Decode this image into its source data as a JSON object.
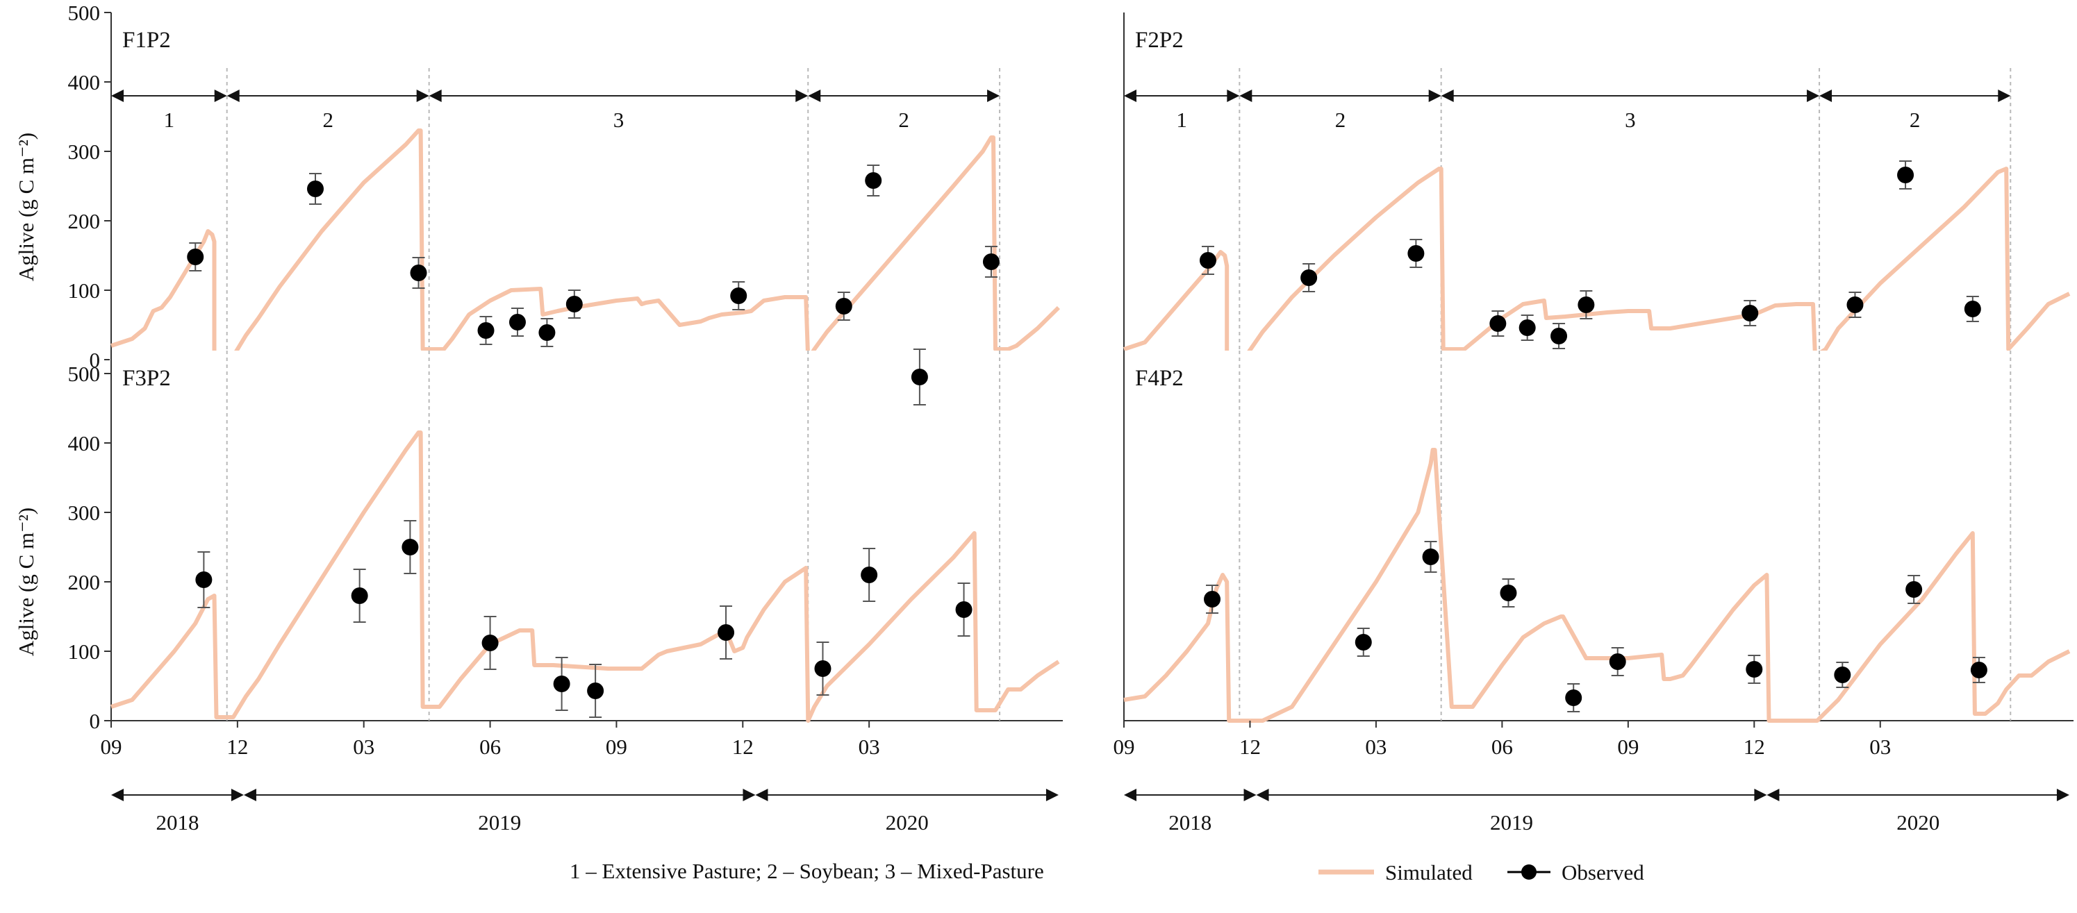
{
  "figure": {
    "legend": {
      "simulated_label": "Simulated",
      "observed_label": "Observed"
    },
    "phase_caption": "1 – Extensive Pasture; 2 – Soybean; 3 – Mixed-Pasture",
    "x_tick_labels": [
      "09",
      "12",
      "03",
      "06",
      "09",
      "12",
      "03"
    ],
    "x_tick_months": [
      0,
      3,
      6,
      9,
      12,
      15,
      18
    ],
    "year_labels": [
      {
        "label": "2018",
        "start": 0,
        "end": 3.15
      },
      {
        "label": "2019",
        "start": 3.15,
        "end": 15.3
      },
      {
        "label": "2020",
        "start": 15.3,
        "end": 22.5
      }
    ],
    "x_range_months": [
      0,
      22.6
    ],
    "month_axis_note": "x values are months since Sep 1 2018",
    "simulated_color": "#f6c3a8",
    "observed_color": "#000000"
  },
  "chart_data": [
    {
      "id": "F1P2",
      "title": "F1P2",
      "type": "line",
      "ylabel": "Aglive (g C m⁻²)",
      "ylim": [
        0,
        500
      ],
      "yticks": [
        0,
        100,
        200,
        300,
        400,
        500
      ],
      "ytick_labels": [
        "0",
        "100",
        "200",
        "300",
        "400",
        "500"
      ],
      "show_x_axis_labels": false,
      "phases": [
        {
          "label": "1",
          "start": 0,
          "end": 2.75
        },
        {
          "label": "2",
          "start": 2.75,
          "end": 7.55
        },
        {
          "label": "3",
          "start": 7.55,
          "end": 16.55
        },
        {
          "label": "2",
          "start": 16.55,
          "end": 21.1
        }
      ],
      "simulated": {
        "name": "Simulated",
        "x": [
          0,
          0.5,
          0.8,
          1.0,
          1.2,
          1.4,
          1.6,
          1.8,
          2.0,
          2.2,
          2.3,
          2.4,
          2.45,
          2.45,
          2.8,
          2.9,
          3.2,
          3.5,
          4.0,
          5.0,
          6.0,
          7.0,
          7.3,
          7.35,
          7.4,
          7.9,
          8.1,
          8.5,
          9.0,
          9.5,
          10.2,
          10.25,
          10.6,
          11.0,
          11.5,
          12.0,
          12.5,
          12.6,
          12.7,
          13.0,
          13.5,
          14.0,
          14.2,
          14.5,
          15.0,
          15.2,
          15.5,
          16.0,
          16.5,
          16.55,
          16.7,
          17.0,
          18.0,
          19.0,
          20.0,
          20.7,
          20.9,
          20.95,
          21.0,
          21.3,
          21.5,
          22.0,
          22.5
        ],
        "y": [
          20,
          30,
          45,
          70,
          75,
          90,
          110,
          130,
          150,
          170,
          185,
          180,
          170,
          5,
          5,
          5,
          35,
          60,
          105,
          185,
          255,
          310,
          330,
          330,
          15,
          15,
          30,
          65,
          85,
          100,
          102,
          65,
          70,
          75,
          80,
          85,
          88,
          80,
          82,
          85,
          50,
          55,
          60,
          65,
          68,
          70,
          85,
          90,
          90,
          0,
          15,
          40,
          110,
          180,
          250,
          300,
          320,
          320,
          15,
          15,
          20,
          45,
          75
        ]
      },
      "observed": {
        "name": "Observed",
        "x": [
          2.0,
          4.85,
          7.3,
          8.9,
          9.65,
          10.35,
          11.0,
          14.9,
          17.4,
          18.1,
          20.9
        ],
        "y": [
          148,
          246,
          125,
          42,
          54,
          39,
          80,
          92,
          77,
          258,
          141
        ],
        "err": [
          20,
          22,
          22,
          20,
          20,
          20,
          20,
          20,
          20,
          22,
          22
        ]
      }
    },
    {
      "id": "F2P2",
      "title": "F2P2",
      "type": "line",
      "ylabel": "",
      "ylim": [
        0,
        500
      ],
      "yticks": [],
      "ytick_labels": [],
      "show_x_axis_labels": false,
      "phases": [
        {
          "label": "1",
          "start": 0,
          "end": 2.75
        },
        {
          "label": "2",
          "start": 2.75,
          "end": 7.55
        },
        {
          "label": "3",
          "start": 7.55,
          "end": 16.55
        },
        {
          "label": "2",
          "start": 16.55,
          "end": 21.1
        }
      ],
      "simulated": {
        "name": "Simulated",
        "x": [
          0,
          0.5,
          1.0,
          1.5,
          2.0,
          2.3,
          2.4,
          2.45,
          2.45,
          2.8,
          2.9,
          3.3,
          4.0,
          5.0,
          6.0,
          7.0,
          7.5,
          7.55,
          7.6,
          8.1,
          8.5,
          9.0,
          9.5,
          10.0,
          10.05,
          10.5,
          11.0,
          11.5,
          12.0,
          12.5,
          12.55,
          13.0,
          13.5,
          14.0,
          14.5,
          15.0,
          15.5,
          16.0,
          16.4,
          16.45,
          16.7,
          17.0,
          18.0,
          19.0,
          20.0,
          20.8,
          21.0,
          21.05,
          21.5,
          22.0,
          22.5
        ],
        "y": [
          15,
          25,
          60,
          95,
          130,
          155,
          150,
          135,
          5,
          5,
          5,
          40,
          90,
          150,
          205,
          255,
          275,
          275,
          15,
          15,
          35,
          60,
          80,
          85,
          60,
          62,
          65,
          68,
          70,
          70,
          45,
          45,
          50,
          55,
          60,
          65,
          78,
          80,
          80,
          5,
          15,
          45,
          110,
          165,
          220,
          270,
          275,
          15,
          45,
          80,
          95
        ]
      },
      "observed": {
        "name": "Observed",
        "x": [
          2.0,
          4.4,
          6.95,
          8.9,
          9.6,
          10.35,
          11.0,
          14.9,
          17.4,
          18.6,
          20.2
        ],
        "y": [
          143,
          118,
          153,
          52,
          46,
          34,
          79,
          67,
          79,
          266,
          73
        ],
        "err": [
          20,
          20,
          20,
          18,
          18,
          18,
          20,
          18,
          18,
          20,
          18
        ]
      }
    },
    {
      "id": "F3P2",
      "title": "F3P2",
      "type": "line",
      "ylabel": "Aglive (g C m⁻²)",
      "ylim": [
        0,
        550
      ],
      "yticks": [
        0,
        100,
        200,
        300,
        400,
        500
      ],
      "ytick_labels": [
        "0",
        "100",
        "200",
        "300",
        "400",
        "500"
      ],
      "show_x_axis_labels": true,
      "phases": [
        {
          "label": "",
          "start": 0,
          "end": 2.75
        },
        {
          "label": "",
          "start": 2.75,
          "end": 7.55
        },
        {
          "label": "",
          "start": 7.55,
          "end": 16.55
        },
        {
          "label": "",
          "start": 16.55,
          "end": 21.1
        }
      ],
      "simulated": {
        "name": "Simulated",
        "x": [
          0,
          0.5,
          1.0,
          1.5,
          2.0,
          2.3,
          2.45,
          2.5,
          2.55,
          2.9,
          3.2,
          3.5,
          4.0,
          5.0,
          6.0,
          7.0,
          7.3,
          7.35,
          7.4,
          7.8,
          8.3,
          9.0,
          9.7,
          10.0,
          10.05,
          10.5,
          11.0,
          11.8,
          12.0,
          12.6,
          12.8,
          13.0,
          13.2,
          14.0,
          14.6,
          14.8,
          15.0,
          15.1,
          15.5,
          16.0,
          16.5,
          16.55,
          16.7,
          17.0,
          18.0,
          19.0,
          20.0,
          20.5,
          20.55,
          21.0,
          21.3,
          21.6,
          22.0,
          22.5
        ],
        "y": [
          20,
          30,
          65,
          100,
          140,
          175,
          180,
          5,
          5,
          5,
          35,
          60,
          110,
          205,
          300,
          390,
          415,
          415,
          20,
          20,
          60,
          110,
          130,
          130,
          80,
          80,
          78,
          75,
          75,
          75,
          85,
          95,
          100,
          110,
          130,
          100,
          105,
          120,
          160,
          200,
          220,
          0,
          20,
          50,
          110,
          175,
          235,
          270,
          15,
          15,
          45,
          45,
          65,
          85
        ]
      },
      "observed": {
        "name": "Observed",
        "x": [
          2.2,
          5.9,
          7.1,
          9.0,
          10.7,
          11.5,
          14.6,
          16.9,
          18.0,
          19.2,
          20.25
        ],
        "y": [
          203,
          180,
          250,
          112,
          53,
          43,
          127,
          75,
          210,
          495,
          160
        ],
        "err": [
          40,
          38,
          38,
          38,
          38,
          38,
          38,
          38,
          38,
          40,
          38
        ]
      }
    },
    {
      "id": "F4P2",
      "title": "F4P2",
      "type": "line",
      "ylabel": "",
      "ylim": [
        0,
        550
      ],
      "yticks": [],
      "ytick_labels": [],
      "show_x_axis_labels": true,
      "phases": [
        {
          "label": "",
          "start": 0,
          "end": 2.75
        },
        {
          "label": "",
          "start": 2.75,
          "end": 7.55
        },
        {
          "label": "",
          "start": 7.55,
          "end": 16.55
        },
        {
          "label": "",
          "start": 16.55,
          "end": 21.1
        }
      ],
      "simulated": {
        "name": "Simulated",
        "x": [
          0,
          0.5,
          1.0,
          1.5,
          2.0,
          2.2,
          2.35,
          2.45,
          2.5,
          2.9,
          3.3,
          4.0,
          5.0,
          6.0,
          7.0,
          7.3,
          7.35,
          7.4,
          7.8,
          8.3,
          9.0,
          9.5,
          10.0,
          10.4,
          10.45,
          11.0,
          11.5,
          12.0,
          12.8,
          12.85,
          13.0,
          13.3,
          13.5,
          14.0,
          14.5,
          15.0,
          15.3,
          15.35,
          16.0,
          16.5,
          17.0,
          18.0,
          19.0,
          19.8,
          20.2,
          20.25,
          20.5,
          20.8,
          21.0,
          21.3,
          21.6,
          22.0,
          22.5
        ],
        "y": [
          30,
          35,
          65,
          100,
          140,
          190,
          210,
          200,
          0,
          0,
          0,
          20,
          110,
          200,
          300,
          370,
          390,
          390,
          20,
          20,
          80,
          120,
          140,
          150,
          150,
          90,
          90,
          90,
          95,
          60,
          60,
          65,
          80,
          120,
          160,
          195,
          210,
          0,
          0,
          0,
          30,
          110,
          175,
          240,
          270,
          10,
          10,
          25,
          45,
          65,
          65,
          85,
          100
        ]
      },
      "observed": {
        "name": "Observed",
        "x": [
          2.1,
          5.7,
          7.3,
          9.15,
          10.7,
          11.75,
          15.0,
          17.1,
          18.8,
          20.35
        ],
        "y": [
          175,
          113,
          236,
          184,
          33,
          85,
          74,
          66,
          189,
          73
        ],
        "err": [
          20,
          20,
          22,
          20,
          20,
          20,
          20,
          18,
          20,
          18
        ]
      }
    }
  ]
}
